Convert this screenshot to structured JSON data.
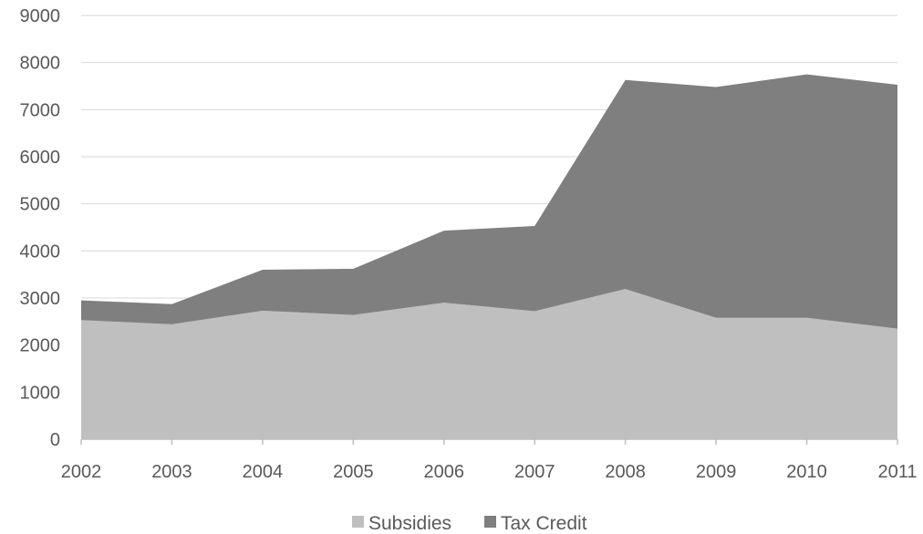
{
  "chart_data": {
    "type": "area",
    "stacked": true,
    "categories": [
      "2002",
      "2003",
      "2004",
      "2005",
      "2006",
      "2007",
      "2008",
      "2009",
      "2010",
      "2011"
    ],
    "series": [
      {
        "name": "Subsidies",
        "values": [
          2530,
          2440,
          2730,
          2640,
          2900,
          2720,
          3190,
          2580,
          2580,
          2350
        ],
        "color": "#bfbfbf"
      },
      {
        "name": "Tax Credit",
        "values": [
          420,
          430,
          870,
          980,
          1530,
          1810,
          4440,
          4900,
          5170,
          5180
        ],
        "color": "#7f7f7f"
      }
    ],
    "yticks": [
      "0",
      "1000",
      "2000",
      "3000",
      "4000",
      "5000",
      "6000",
      "7000",
      "8000",
      "9000"
    ],
    "ylim": [
      0,
      9000
    ],
    "grid": true,
    "legend_position": "bottom",
    "title": "",
    "xlabel": "",
    "ylabel": ""
  }
}
